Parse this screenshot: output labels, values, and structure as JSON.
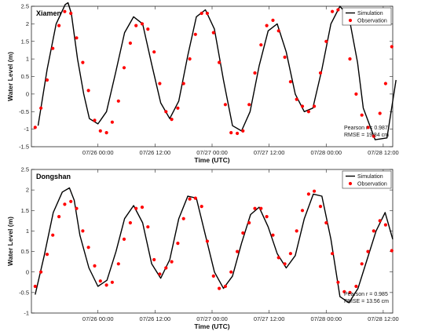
{
  "chart_data": [
    {
      "type": "line",
      "title": "Xiamen",
      "xlabel": "Time (UTC)",
      "ylabel": "Water Level (m)",
      "ylim": [
        -1.5,
        2.5
      ],
      "yticks": [
        -1.5,
        -1,
        -0.5,
        0,
        0.5,
        1,
        1.5,
        2,
        2.5
      ],
      "xlim": [
        -14,
        62
      ],
      "xticks": [
        {
          "x": 0,
          "label": "07/26 00:00"
        },
        {
          "x": 12,
          "label": "07/26 12:00"
        },
        {
          "x": 24,
          "label": "07/27 00:00"
        },
        {
          "x": 36,
          "label": "07/27 12:00"
        },
        {
          "x": 48,
          "label": "07/28 00:00"
        },
        {
          "x": 60,
          "label": "07/28 12:00"
        }
      ],
      "legend": {
        "placement": "top-right",
        "entries": [
          "Simulation",
          "Observation"
        ]
      },
      "stats": {
        "pearson": "Pearson r = 0.987",
        "rmse": "RMSE = 19.84 cm"
      },
      "series": [
        {
          "name": "Simulation",
          "style": "line",
          "color": "#000000",
          "x": [
            -12.6,
            -10.7,
            -8.8,
            -6.9,
            -6.3,
            -5.6,
            -4.3,
            -3.0,
            -1.8,
            0.0,
            1.8,
            3.7,
            5.6,
            7.5,
            9.4,
            11.3,
            13.2,
            15.1,
            17.0,
            18.9,
            20.7,
            22.6,
            24.5,
            26.4,
            28.3,
            30.2,
            32.0,
            33.9,
            35.8,
            37.7,
            39.6,
            41.5,
            43.4,
            45.2,
            47.1,
            49.0,
            50.9,
            52.8,
            54.6,
            55.8,
            58.3,
            60.8,
            62.7
          ],
          "y": [
            -0.9,
            0.7,
            2.0,
            2.55,
            2.6,
            2.3,
            1.0,
            0.0,
            -0.7,
            -0.85,
            -0.5,
            0.6,
            1.75,
            2.2,
            2.0,
            0.85,
            -0.25,
            -0.7,
            -0.2,
            1.1,
            2.2,
            2.4,
            1.85,
            0.4,
            -0.9,
            -1.05,
            -0.5,
            0.8,
            1.8,
            2.0,
            1.2,
            0.0,
            -0.5,
            -0.4,
            0.7,
            2.0,
            2.5,
            2.2,
            0.9,
            -0.4,
            -1.3,
            -1.25,
            0.4
          ]
        },
        {
          "name": "Observation",
          "style": "scatter",
          "color": "#ff0000",
          "x": [
            -13.2,
            -12.0,
            -10.7,
            -9.5,
            -8.2,
            -7.0,
            -5.7,
            -4.5,
            -3.2,
            -2.0,
            -0.7,
            0.5,
            1.8,
            3.0,
            4.3,
            5.5,
            6.8,
            8.0,
            9.3,
            10.5,
            11.8,
            13.0,
            14.3,
            15.5,
            16.8,
            18.0,
            19.3,
            20.5,
            21.8,
            23.0,
            24.3,
            25.5,
            26.8,
            28.0,
            29.3,
            30.5,
            31.8,
            33.0,
            34.3,
            35.5,
            36.8,
            38.0,
            39.3,
            40.5,
            41.8,
            43.0,
            44.3,
            45.5,
            46.8,
            48.0,
            49.3,
            50.5,
            51.8,
            53.0,
            54.3,
            55.5,
            56.8,
            58.0,
            59.3,
            60.5,
            61.8
          ],
          "y": [
            -0.95,
            -0.4,
            0.4,
            1.3,
            1.95,
            2.35,
            2.3,
            1.6,
            0.9,
            0.1,
            -0.75,
            -1.05,
            -1.1,
            -0.8,
            -0.2,
            0.75,
            1.45,
            1.95,
            2.0,
            1.85,
            1.2,
            0.3,
            -0.5,
            -0.72,
            -0.4,
            0.3,
            1.0,
            1.7,
            2.3,
            2.3,
            1.75,
            0.9,
            -0.3,
            -1.1,
            -1.12,
            -1.05,
            -0.3,
            0.6,
            1.4,
            1.95,
            2.1,
            1.8,
            1.05,
            0.35,
            -0.15,
            -0.35,
            -0.5,
            -0.35,
            0.6,
            1.5,
            2.35,
            2.4,
            2.2,
            1.0,
            0.0,
            -0.6,
            -0.95,
            -1.2,
            -0.55,
            0.3,
            1.35
          ]
        }
      ]
    },
    {
      "type": "line",
      "title": "Dongshan",
      "xlabel": "Time (UTC)",
      "ylabel": "Water Level (m)",
      "ylim": [
        -1,
        2.5
      ],
      "yticks": [
        -1,
        -0.5,
        0,
        0.5,
        1,
        1.5,
        2,
        2.5
      ],
      "xlim": [
        -14,
        62
      ],
      "xticks": [
        {
          "x": 0,
          "label": "07/26 00:00"
        },
        {
          "x": 12,
          "label": "07/26 12:00"
        },
        {
          "x": 24,
          "label": "07/27 00:00"
        },
        {
          "x": 36,
          "label": "07/27 12:00"
        },
        {
          "x": 48,
          "label": "07/28 00:00"
        },
        {
          "x": 60,
          "label": "07/28 12:00"
        }
      ],
      "legend": {
        "placement": "top-right",
        "entries": [
          "Simulation",
          "Observation"
        ]
      },
      "stats": {
        "pearson": "Pearson r = 0.985",
        "rmse": "RMSE = 13.56 cm"
      },
      "series": [
        {
          "name": "Simulation",
          "style": "line",
          "color": "#000000",
          "x": [
            -13.2,
            -11.3,
            -9.4,
            -7.5,
            -6.0,
            -5.0,
            -3.8,
            -1.9,
            0.0,
            1.9,
            3.8,
            5.6,
            7.5,
            9.4,
            11.3,
            13.2,
            15.1,
            17.0,
            18.9,
            20.7,
            22.6,
            24.5,
            26.4,
            28.3,
            30.2,
            32.1,
            33.9,
            35.8,
            37.7,
            39.6,
            41.5,
            43.4,
            45.3,
            47.1,
            49.0,
            50.9,
            52.8,
            54.7,
            56.6,
            58.5,
            60.4,
            62.0
          ],
          "y": [
            -0.55,
            0.4,
            1.45,
            1.95,
            2.05,
            1.75,
            0.9,
            0.1,
            -0.35,
            -0.2,
            0.5,
            1.3,
            1.62,
            1.2,
            0.2,
            -0.15,
            0.3,
            1.3,
            1.85,
            1.8,
            0.9,
            0.0,
            -0.4,
            -0.1,
            0.7,
            1.4,
            1.58,
            1.1,
            0.45,
            0.1,
            0.4,
            1.3,
            1.9,
            1.85,
            0.8,
            -0.6,
            -0.75,
            -0.4,
            0.3,
            1.0,
            1.45,
            0.8
          ]
        },
        {
          "name": "Observation",
          "style": "scatter",
          "color": "#ff0000",
          "x": [
            -13.2,
            -12.0,
            -10.7,
            -9.5,
            -8.2,
            -7.0,
            -5.7,
            -4.5,
            -3.2,
            -2.0,
            -0.7,
            0.5,
            1.8,
            3.0,
            4.3,
            5.5,
            6.8,
            8.0,
            9.3,
            10.5,
            11.8,
            13.0,
            14.3,
            15.5,
            16.8,
            18.0,
            19.3,
            20.5,
            21.8,
            23.0,
            24.3,
            25.5,
            26.8,
            28.0,
            29.3,
            30.5,
            31.8,
            33.0,
            34.3,
            35.5,
            36.8,
            38.0,
            39.3,
            40.5,
            41.8,
            43.0,
            44.3,
            45.5,
            46.8,
            48.0,
            49.3,
            50.5,
            51.8,
            53.0,
            54.3,
            55.5,
            56.8,
            58.0,
            59.3,
            60.5,
            61.8
          ],
          "y": [
            -0.35,
            0.0,
            0.43,
            0.9,
            1.35,
            1.65,
            1.72,
            1.55,
            1.0,
            0.6,
            0.15,
            -0.22,
            -0.32,
            -0.25,
            0.2,
            0.8,
            1.2,
            1.55,
            1.58,
            1.1,
            0.3,
            -0.05,
            0.1,
            0.25,
            0.7,
            1.3,
            1.78,
            1.8,
            1.6,
            0.75,
            -0.1,
            -0.4,
            -0.35,
            0.0,
            0.5,
            0.95,
            1.2,
            1.55,
            1.55,
            1.35,
            0.9,
            0.35,
            0.2,
            0.45,
            1.0,
            1.5,
            1.9,
            1.97,
            1.6,
            1.2,
            0.45,
            -0.25,
            -0.48,
            -0.5,
            -0.35,
            0.2,
            0.5,
            1.0,
            1.25,
            1.15,
            0.52
          ]
        }
      ]
    }
  ]
}
